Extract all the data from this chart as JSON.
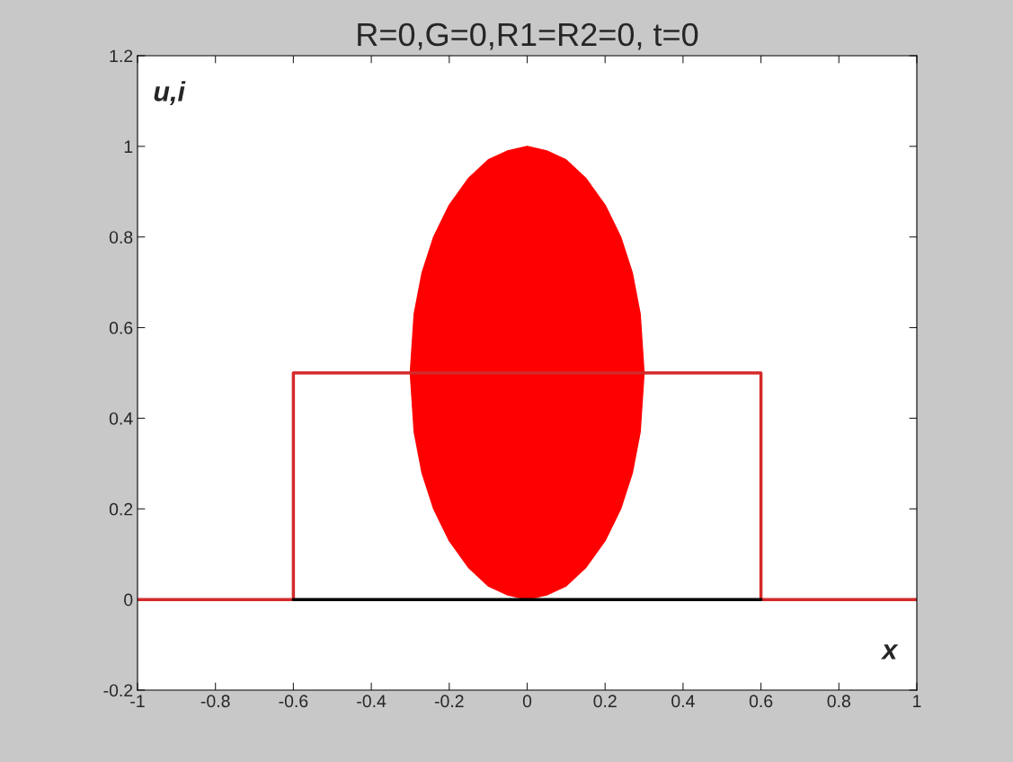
{
  "chart_data": {
    "type": "line",
    "title": "R=0,G=0,R1=R2=0, t=0",
    "xlabel": "x",
    "ylabel": "u,i",
    "xlim": [
      -1,
      1
    ],
    "xticks": [
      -1,
      -0.8,
      -0.6,
      -0.4,
      -0.2,
      0,
      0.2,
      0.4,
      0.6,
      0.8,
      1
    ],
    "ylim": [
      -0.2,
      1.2
    ],
    "yticks": [
      -0.2,
      0,
      0.2,
      0.4,
      0.6,
      0.8,
      1,
      1.2
    ],
    "grid": false,
    "legend": false,
    "series": [
      {
        "type": "line",
        "color": "#d42a2a",
        "x": [
          -1,
          -0.6,
          -0.6,
          0.6,
          0.6,
          1
        ],
        "values": [
          0,
          0,
          0.5,
          0.5,
          0,
          0
        ]
      },
      {
        "color": "#000000",
        "x": [
          -0.6,
          0.6
        ],
        "values": [
          0,
          0
        ]
      },
      {
        "type": "area",
        "color": "#ff0000",
        "x": [
          -0.3,
          -0.29,
          -0.27,
          -0.24,
          -0.2,
          -0.15,
          -0.1,
          -0.05,
          0,
          0.05,
          0.1,
          0.15,
          0.2,
          0.24,
          0.27,
          0.29,
          0.3,
          0.29,
          0.27,
          0.24,
          0.2,
          0.15,
          0.1,
          0.05,
          0,
          -0.05,
          -0.1,
          -0.15,
          -0.2,
          -0.24,
          -0.27,
          -0.29
        ],
        "values": [
          0.5,
          0.63,
          0.72,
          0.8,
          0.87,
          0.93,
          0.97,
          0.99,
          1.0,
          0.99,
          0.97,
          0.93,
          0.87,
          0.8,
          0.72,
          0.63,
          0.5,
          0.37,
          0.28,
          0.2,
          0.13,
          0.07,
          0.03,
          0.01,
          0,
          0.01,
          0.03,
          0.07,
          0.13,
          0.2,
          0.28,
          0.37
        ]
      }
    ]
  }
}
